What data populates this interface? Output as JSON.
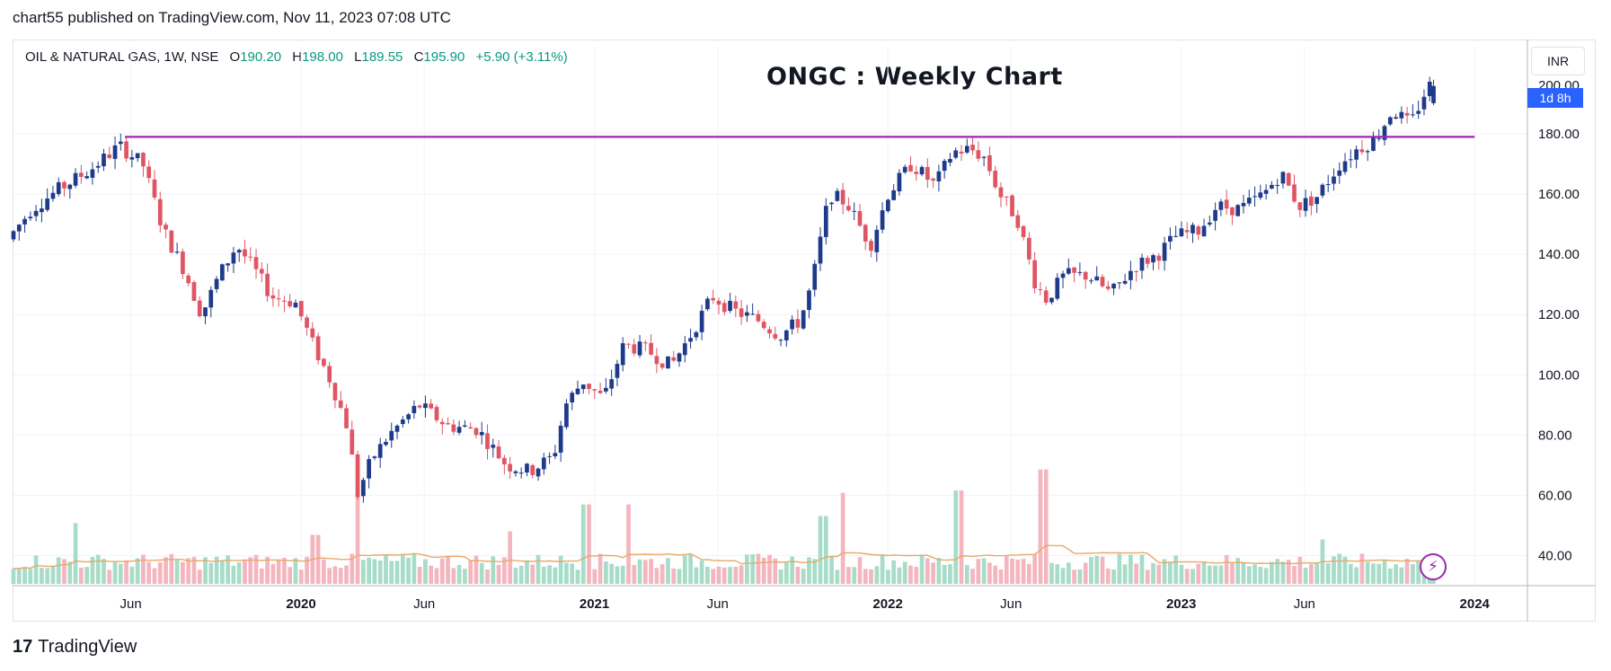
{
  "publish_line": "chart55 published on TradingView.com, Nov 11, 2023 07:08 UTC",
  "legend": {
    "symbol": "OIL & NATURAL GAS, 1W, NSE",
    "open_label": "O",
    "open": "190.20",
    "high_label": "H",
    "high": "198.00",
    "low_label": "L",
    "low": "189.55",
    "close_label": "C",
    "close": "195.90",
    "change": "+5.90 (+3.11%)"
  },
  "currency_button": "INR",
  "countdown_label": "1d 8h",
  "bolt_icon": "lightning-bolt-icon",
  "brand": {
    "mark": "17",
    "name": "TradingView"
  },
  "colors": {
    "up": "#1e3a8a",
    "down": "#e05563",
    "resistance": "#9c27b0",
    "ma": "#e8a86a",
    "vol_up": "#a7dcc8",
    "vol_down": "#f4b6be"
  },
  "chart_data": {
    "type": "candlestick",
    "title": "ONGC : Weekly Chart",
    "timeframe": "1W",
    "ylim": [
      30,
      200
    ],
    "y_ticks": [
      40,
      60,
      80,
      100,
      120,
      140,
      160,
      180
    ],
    "y_tick_labels": [
      "40.00",
      "60.00",
      "80.00",
      "100.00",
      "120.00",
      "140.00",
      "160.00",
      "180.00"
    ],
    "y_top_partial_label": "200.00",
    "x_ticks": [
      {
        "label": "Jun",
        "t": 2019.42,
        "year": false
      },
      {
        "label": "2020",
        "t": 2020.0,
        "year": true
      },
      {
        "label": "Jun",
        "t": 2020.42,
        "year": false
      },
      {
        "label": "2021",
        "t": 2021.0,
        "year": true
      },
      {
        "label": "Jun",
        "t": 2021.42,
        "year": false
      },
      {
        "label": "2022",
        "t": 2022.0,
        "year": true
      },
      {
        "label": "Jun",
        "t": 2022.42,
        "year": false
      },
      {
        "label": "2023",
        "t": 2023.0,
        "year": true
      },
      {
        "label": "Jun",
        "t": 2023.42,
        "year": false
      },
      {
        "label": "2024",
        "t": 2024.0,
        "year": true
      }
    ],
    "x_range": [
      2019.02,
      2024.18
    ],
    "resistance_level": 179,
    "resistance_from": 2019.4,
    "resistance_to": 2024.0,
    "keypoints": [
      [
        2019.02,
        145
      ],
      [
        2019.1,
        155
      ],
      [
        2019.2,
        162
      ],
      [
        2019.3,
        168
      ],
      [
        2019.4,
        176
      ],
      [
        2019.48,
        170
      ],
      [
        2019.55,
        148
      ],
      [
        2019.62,
        135
      ],
      [
        2019.68,
        120
      ],
      [
        2019.74,
        133
      ],
      [
        2019.8,
        143
      ],
      [
        2019.86,
        135
      ],
      [
        2019.92,
        126
      ],
      [
        2020.0,
        124
      ],
      [
        2020.06,
        110
      ],
      [
        2020.12,
        98
      ],
      [
        2020.18,
        82
      ],
      [
        2020.21,
        60
      ],
      [
        2020.26,
        72
      ],
      [
        2020.32,
        80
      ],
      [
        2020.42,
        90
      ],
      [
        2020.52,
        83
      ],
      [
        2020.62,
        82
      ],
      [
        2020.72,
        70
      ],
      [
        2020.8,
        68
      ],
      [
        2020.88,
        73
      ],
      [
        2020.92,
        90
      ],
      [
        2020.98,
        98
      ],
      [
        2021.05,
        92
      ],
      [
        2021.12,
        110
      ],
      [
        2021.2,
        108
      ],
      [
        2021.28,
        103
      ],
      [
        2021.34,
        112
      ],
      [
        2021.42,
        126
      ],
      [
        2021.5,
        121
      ],
      [
        2021.58,
        118
      ],
      [
        2021.65,
        113
      ],
      [
        2021.72,
        118
      ],
      [
        2021.76,
        130
      ],
      [
        2021.82,
        160
      ],
      [
        2021.88,
        157
      ],
      [
        2021.96,
        143
      ],
      [
        2022.02,
        160
      ],
      [
        2022.1,
        170
      ],
      [
        2022.18,
        163
      ],
      [
        2022.24,
        174
      ],
      [
        2022.3,
        175
      ],
      [
        2022.35,
        172
      ],
      [
        2022.4,
        160
      ],
      [
        2022.46,
        152
      ],
      [
        2022.52,
        131
      ],
      [
        2022.56,
        125
      ],
      [
        2022.62,
        133
      ],
      [
        2022.7,
        133
      ],
      [
        2022.78,
        127
      ],
      [
        2022.86,
        136
      ],
      [
        2022.94,
        140
      ],
      [
        2023.0,
        146
      ],
      [
        2023.08,
        148
      ],
      [
        2023.14,
        156
      ],
      [
        2023.22,
        155
      ],
      [
        2023.3,
        160
      ],
      [
        2023.36,
        167
      ],
      [
        2023.42,
        156
      ],
      [
        2023.48,
        159
      ],
      [
        2023.56,
        170
      ],
      [
        2023.62,
        175
      ],
      [
        2023.68,
        178
      ],
      [
        2023.74,
        188
      ],
      [
        2023.8,
        183
      ],
      [
        2023.86,
        196
      ]
    ],
    "last_candle": {
      "open": 190.2,
      "high": 198.0,
      "low": 189.55,
      "close": 195.9
    },
    "volume_spikes": [
      {
        "t": 2019.23,
        "rel": 0.52
      },
      {
        "t": 2020.05,
        "rel": 0.42
      },
      {
        "t": 2020.2,
        "rel": 0.85
      },
      {
        "t": 2020.71,
        "rel": 0.45
      },
      {
        "t": 2020.97,
        "rel": 0.68
      },
      {
        "t": 2021.12,
        "rel": 0.68
      },
      {
        "t": 2021.78,
        "rel": 0.58
      },
      {
        "t": 2021.85,
        "rel": 0.78
      },
      {
        "t": 2022.24,
        "rel": 0.8
      },
      {
        "t": 2022.53,
        "rel": 0.98
      },
      {
        "t": 2023.48,
        "rel": 0.38
      }
    ]
  }
}
